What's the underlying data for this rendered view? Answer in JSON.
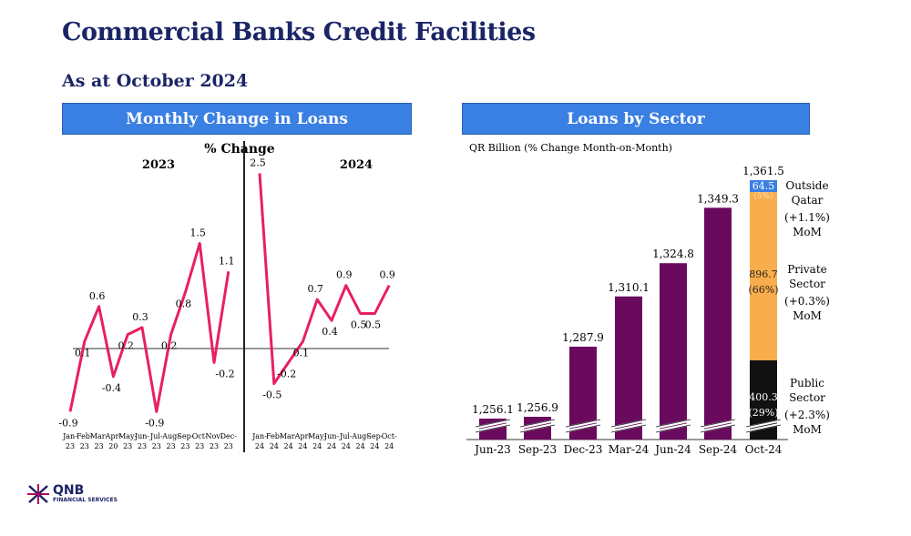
{
  "title": "Commercial Banks Credit Facilities",
  "subtitle": "As at October 2024",
  "logo": {
    "name": "QNB",
    "tagline": "FINANCIAL SERVICES"
  },
  "chart_data": [
    {
      "type": "line",
      "header": "Monthly Change in Loans",
      "title": "% Change",
      "ylim": [
        -1,
        2.6
      ],
      "groups": [
        {
          "label": "2023",
          "categories": [
            "Jan-23",
            "Feb-23",
            "Mar-23",
            "Apr-20",
            "May-23",
            "Jun-23",
            "Jul-23",
            "Aug-23",
            "Sep-23",
            "Oct-23",
            "Nov-23",
            "Dec-23"
          ],
          "values": [
            -0.9,
            0.1,
            0.6,
            -0.4,
            0.2,
            0.3,
            -0.9,
            0.2,
            0.8,
            1.5,
            -0.2,
            1.1
          ]
        },
        {
          "label": "2024",
          "categories": [
            "Jan-24",
            "Feb-24",
            "Mar-24",
            "Apr-24",
            "May-24",
            "Jun-24",
            "Jul-24",
            "Aug-24",
            "Sep-24",
            "Oct-24"
          ],
          "values": [
            2.5,
            -0.5,
            -0.2,
            0.1,
            0.7,
            0.4,
            0.9,
            0.5,
            0.5,
            0.9
          ]
        }
      ],
      "color": "#e8205f"
    },
    {
      "type": "bar",
      "header": "Loans by Sector",
      "subtitle": "QR Billion (% Change Month-on-Month)",
      "categories": [
        "Jun-23",
        "Sep-23",
        "Dec-23",
        "Mar-24",
        "Jun-24",
        "Sep-24",
        "Oct-24"
      ],
      "values": [
        1256.1,
        1256.9,
        1287.9,
        1310.1,
        1324.8,
        1349.3,
        1361.5
      ],
      "value_labels": [
        "1,256.1",
        "1,256.9",
        "1,287.9",
        "1,310.1",
        "1,324.8",
        "1,349.3",
        "1,361.5"
      ],
      "color": "#6a0a5e",
      "stack_oct24": [
        {
          "name": "Public Sector",
          "value": "400.3",
          "share": "(29%)",
          "change": "(+2.3%)",
          "mom": "MoM",
          "label_lines": [
            "Public",
            "Sector"
          ],
          "color": "#111111"
        },
        {
          "name": "Private Sector",
          "value": "896.7",
          "share": "(66%)",
          "change": "(+0.3%)",
          "mom": "MoM",
          "label_lines": [
            "Private",
            "Sector"
          ],
          "color": "#f9ad4c"
        },
        {
          "name": "Outside Qatar",
          "value": "64.5",
          "share": "(5%)",
          "change": "(+1.1%)",
          "mom": "MoM",
          "label_lines": [
            "Outside",
            "Qatar"
          ],
          "color": "#3a7fe2"
        }
      ]
    }
  ]
}
